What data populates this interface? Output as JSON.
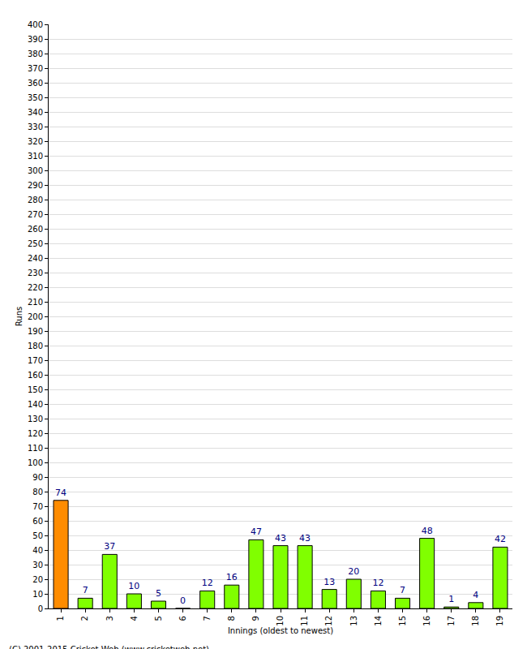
{
  "chart_data": {
    "type": "bar",
    "x_label": "Innings (oldest to newest)",
    "y_label": "Runs",
    "categories": [
      "1",
      "2",
      "3",
      "4",
      "5",
      "6",
      "7",
      "8",
      "9",
      "10",
      "11",
      "12",
      "13",
      "14",
      "15",
      "16",
      "17",
      "18",
      "19"
    ],
    "values": [
      74,
      7,
      37,
      10,
      5,
      0,
      12,
      16,
      47,
      43,
      43,
      13,
      20,
      12,
      7,
      48,
      1,
      4,
      42
    ],
    "colors": [
      "#ff8c00",
      "#80ff00",
      "#80ff00",
      "#80ff00",
      "#80ff00",
      "#80ff00",
      "#80ff00",
      "#80ff00",
      "#80ff00",
      "#80ff00",
      "#80ff00",
      "#80ff00",
      "#80ff00",
      "#80ff00",
      "#80ff00",
      "#80ff00",
      "#80ff00",
      "#80ff00",
      "#80ff00"
    ],
    "ylim": [
      0,
      400
    ],
    "yticks": [
      0,
      10,
      20,
      30,
      40,
      50,
      60,
      70,
      80,
      90,
      100,
      110,
      120,
      130,
      140,
      150,
      160,
      170,
      180,
      190,
      200,
      210,
      220,
      230,
      240,
      250,
      260,
      270,
      280,
      290,
      300,
      310,
      320,
      330,
      340,
      350,
      360,
      370,
      380,
      390,
      400
    ],
    "grid": true,
    "data_labels": true,
    "annotations": [
      "(C) 2001-2015 Cricket Web (www.cricketweb.net)"
    ]
  }
}
